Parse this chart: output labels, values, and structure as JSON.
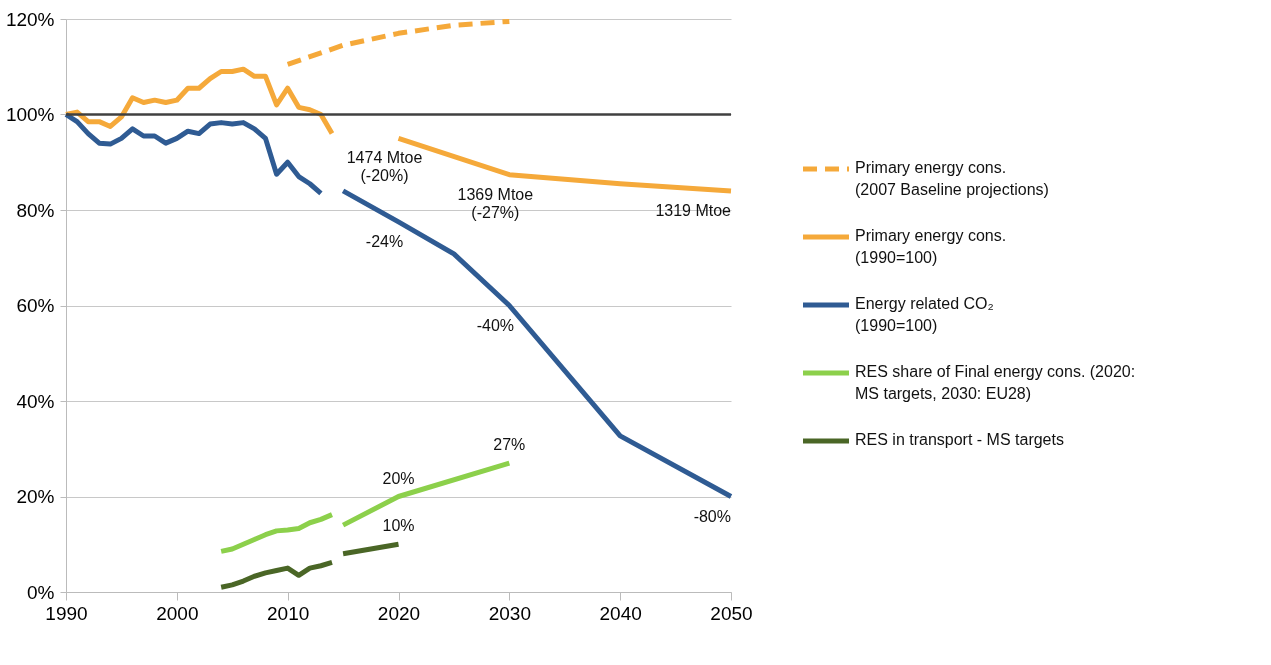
{
  "chart_data": {
    "type": "line",
    "xlim": [
      1990,
      2050
    ],
    "xticks": [
      1990,
      2000,
      2010,
      2020,
      2030,
      2040,
      2050
    ],
    "ylim": [
      0,
      120
    ],
    "yticks": [
      {
        "value": 0,
        "label": "0%"
      },
      {
        "value": 20,
        "label": "20%"
      },
      {
        "value": 40,
        "label": "40%"
      },
      {
        "value": 60,
        "label": "60%"
      },
      {
        "value": 80,
        "label": "80%"
      },
      {
        "value": 100,
        "label": "100%"
      },
      {
        "value": 120,
        "label": "120%"
      }
    ],
    "grid": "y",
    "legend": "right",
    "marker": "none",
    "series": [
      {
        "name": "Primary energy cons.\n(2007 Baseline projections)",
        "color": "#f5a93a",
        "line_style": "dashed",
        "x": [
          2010,
          2015,
          2020,
          2025,
          2030
        ],
        "values": [
          110.5,
          114.5,
          117,
          118.7,
          119.5
        ]
      },
      {
        "name": "Primary energy cons.\n(1990=100)",
        "color": "#f5a93a",
        "line_style": "solid",
        "x": [
          1990,
          1991,
          1992,
          1993,
          1994,
          1995,
          1996,
          1997,
          1998,
          1999,
          2000,
          2001,
          2002,
          2003,
          2004,
          2005,
          2006,
          2007,
          2008,
          2009,
          2010,
          2011,
          2012,
          2013,
          2014,
          2017,
          2020,
          2030,
          2040,
          2050
        ],
        "values": [
          100,
          100.5,
          98.5,
          98.5,
          97.5,
          99.5,
          103.5,
          102.5,
          103,
          102.5,
          103,
          105.5,
          105.5,
          107.5,
          109,
          109,
          109.5,
          108,
          108,
          102,
          105.5,
          101.5,
          101,
          100,
          96,
          null,
          95,
          87.4,
          85.5,
          84
        ]
      },
      {
        "name": "Energy related CO₂\n(1990=100)",
        "color": "#2f5b93",
        "line_style": "solid",
        "x": [
          1990,
          1991,
          1992,
          1993,
          1994,
          1995,
          1996,
          1997,
          1998,
          1999,
          2000,
          2001,
          2002,
          2003,
          2004,
          2005,
          2006,
          2007,
          2008,
          2009,
          2010,
          2011,
          2012,
          2013,
          2014,
          2015,
          2020,
          2025,
          2030,
          2040,
          2050
        ],
        "values": [
          100,
          98.5,
          96,
          94,
          93.8,
          95,
          97,
          95.5,
          95.5,
          94,
          95,
          96.5,
          96,
          98,
          98.3,
          98,
          98.3,
          97,
          95,
          87.5,
          90,
          87,
          85.5,
          83.5,
          null,
          84,
          77.5,
          70.8,
          60,
          32.7,
          20
        ]
      },
      {
        "name": "RES share of Final energy cons. (2020:\nMS targets, 2030: EU28)",
        "color": "#8cd04b",
        "line_style": "solid",
        "x": [
          2004,
          2005,
          2006,
          2007,
          2008,
          2009,
          2010,
          2011,
          2012,
          2013,
          2014,
          2014.5,
          2015,
          2020,
          2030
        ],
        "values": [
          8.5,
          9,
          10,
          11,
          12,
          12.8,
          13,
          13.3,
          14.5,
          15.2,
          16.2,
          null,
          14,
          20,
          27
        ]
      },
      {
        "name": "RES in transport - MS targets",
        "color": "#4a6626",
        "line_style": "solid",
        "x": [
          2004,
          2005,
          2006,
          2007,
          2008,
          2009,
          2010,
          2011,
          2012,
          2013,
          2014,
          2014.5,
          2015,
          2020
        ],
        "values": [
          1,
          1.5,
          2.3,
          3.3,
          4,
          4.5,
          5,
          3.5,
          5,
          5.5,
          6.2,
          null,
          8,
          10
        ]
      }
    ],
    "ref_lines": [
      {
        "axis": "y",
        "value": 100,
        "color": "#404040"
      }
    ],
    "annotations": [
      {
        "text": "1474 Mtoe\n(-20%)",
        "x": 2020,
        "y": 95
      },
      {
        "text": "1369 Mtoe\n(-27%)",
        "x": 2030,
        "y": 87.4
      },
      {
        "text": "1319 Mtoe",
        "x": 2050,
        "y": 84
      },
      {
        "text": "-24%",
        "x": 2020,
        "y": 77.5
      },
      {
        "text": "-40%",
        "x": 2030,
        "y": 60
      },
      {
        "text": "-80%",
        "x": 2050,
        "y": 20
      },
      {
        "text": "20%",
        "x": 2020,
        "y": 20
      },
      {
        "text": "27%",
        "x": 2030,
        "y": 27
      },
      {
        "text": "10%",
        "x": 2020,
        "y": 10
      }
    ]
  }
}
